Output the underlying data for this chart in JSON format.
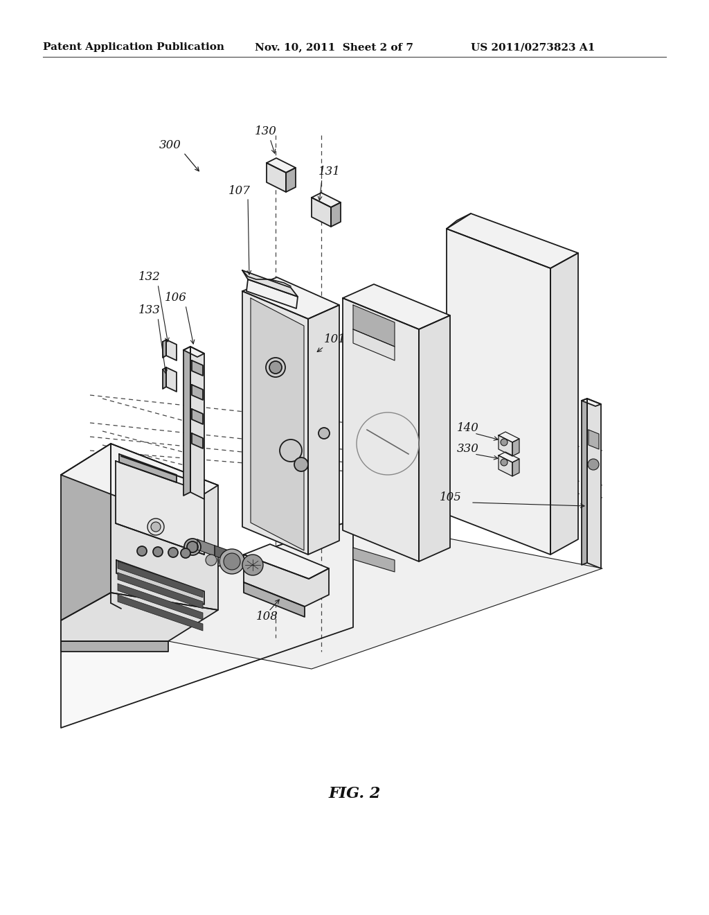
{
  "background_color": "#ffffff",
  "header_left": "Patent Application Publication",
  "header_center": "Nov. 10, 2011  Sheet 2 of 7",
  "header_right": "US 2011/0273823 A1",
  "figure_label": "FIG. 2",
  "line_color": "#1a1a1a",
  "line_width": 1.3,
  "dashed_color": "#444444",
  "fill_light": "#f2f2f2",
  "fill_mid": "#e0e0e0",
  "fill_dark": "#c8c8c8",
  "fill_darker": "#b0b0b0"
}
